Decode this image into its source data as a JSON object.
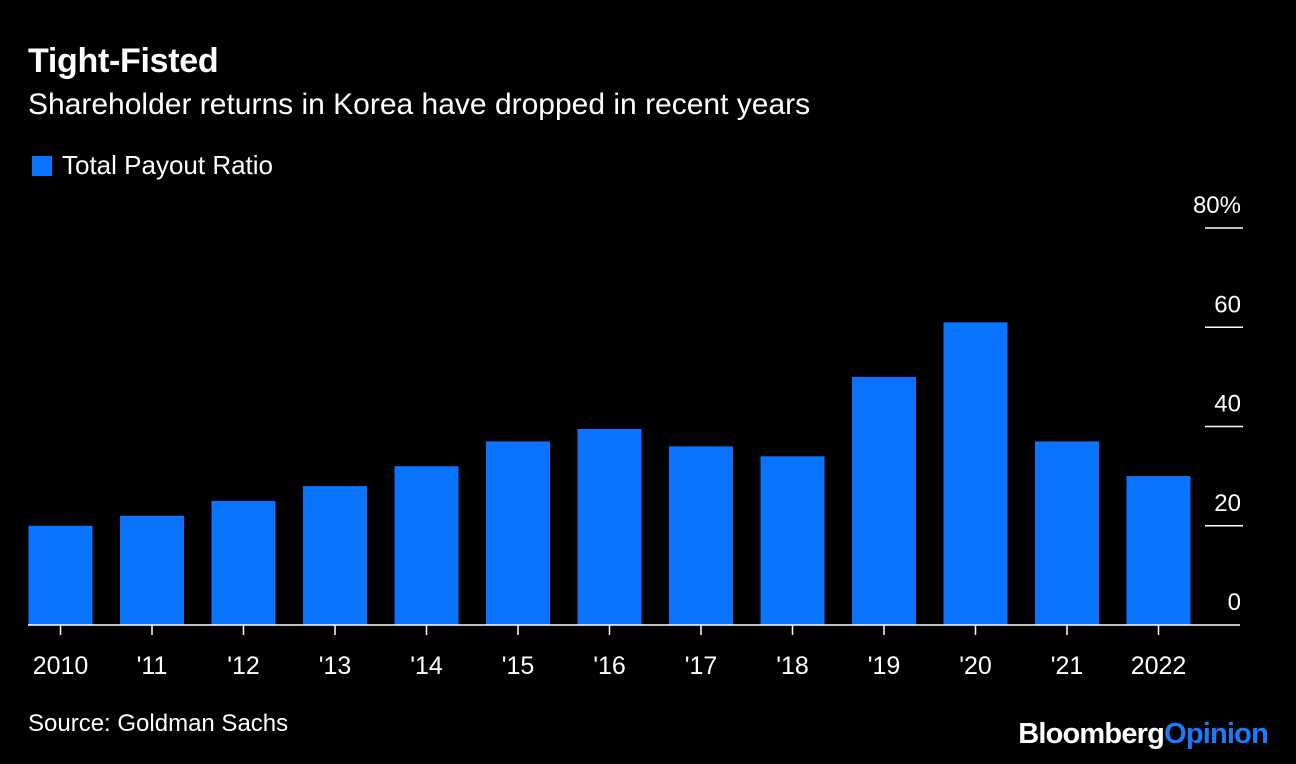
{
  "header": {
    "title": "Tight-Fisted",
    "subtitle": "Shareholder returns in Korea have dropped in recent years"
  },
  "legend": {
    "label": "Total Payout Ratio"
  },
  "footer": {
    "source": "Source: Goldman Sachs",
    "brand_part1": "Bloomberg",
    "brand_part2": "Opinion"
  },
  "colors": {
    "background": "#000000",
    "bar": "#0a74ff",
    "text": "#ffffff",
    "brand_accent": "#1a7bff"
  },
  "chart_data": {
    "type": "bar",
    "categories": [
      "2010",
      "'11",
      "'12",
      "'13",
      "'14",
      "'15",
      "'16",
      "'17",
      "'18",
      "'19",
      "'20",
      "'21",
      "2022"
    ],
    "series": [
      {
        "name": "Total Payout Ratio",
        "values": [
          20,
          22,
          25,
          28,
          32,
          37,
          39.5,
          36,
          34,
          50,
          61,
          37,
          30
        ]
      }
    ],
    "title": "Tight-Fisted",
    "subtitle": "Shareholder returns in Korea have dropped in recent years",
    "ylim": [
      0,
      80
    ],
    "yticks": [
      0,
      20,
      40,
      60,
      80
    ],
    "ytick_labels": [
      "0",
      "20",
      "40",
      "60",
      "80%"
    ],
    "yaxis_position": "right",
    "grid": false,
    "legend": "top-left"
  }
}
